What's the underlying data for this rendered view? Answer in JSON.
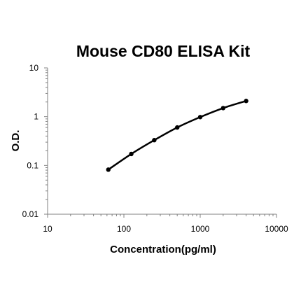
{
  "chart_data": {
    "type": "line",
    "title": "Mouse CD80 ELISA Kit",
    "xlabel": "Concentration(pg/ml)",
    "ylabel": "O.D.",
    "x_scale": "log",
    "y_scale": "log",
    "xlim": [
      10,
      10000
    ],
    "ylim": [
      0.01,
      10
    ],
    "x_ticks": [
      "10",
      "100",
      "1000",
      "10000"
    ],
    "y_ticks": [
      "0.01",
      "0.1",
      "1",
      "10"
    ],
    "grid": false,
    "legend": "none",
    "series": [
      {
        "x": [
          62.5,
          125,
          250,
          500,
          1000,
          2000,
          4000
        ],
        "y": [
          0.082,
          0.172,
          0.33,
          0.6,
          0.98,
          1.5,
          2.1
        ]
      }
    ],
    "colors": {
      "line": "#000000",
      "axis": "#808080"
    }
  }
}
